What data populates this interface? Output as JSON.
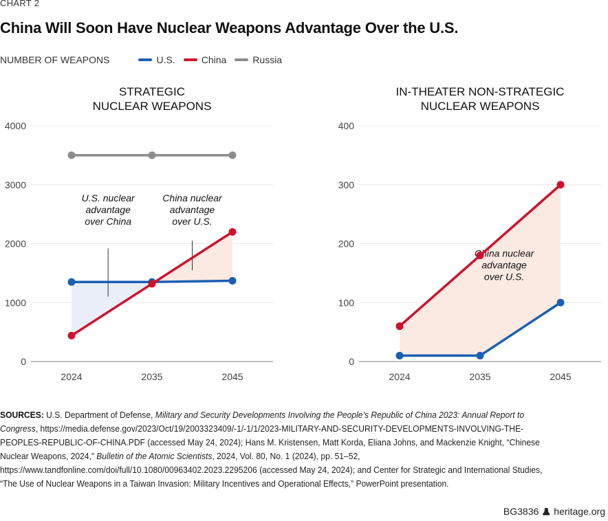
{
  "header": {
    "kicker": "CHART 2",
    "title": "China Will Soon Have Nuclear Weapons Advantage Over the U.S."
  },
  "legend": {
    "units_label": "NUMBER OF WEAPONS",
    "items": [
      {
        "label": "U.S.",
        "color": "#1a5fb4"
      },
      {
        "label": "China",
        "color": "#d0112b"
      },
      {
        "label": "Russia",
        "color": "#8c8c8c"
      }
    ]
  },
  "colors": {
    "us": "#1a5fb4",
    "china": "#d0112b",
    "russia": "#8c8c8c",
    "us_advantage_fill": "#e9eef8",
    "china_advantage_fill": "#fbeae2",
    "gridline": "#e8e8e8",
    "axis": "#999999"
  },
  "chart_data": [
    {
      "type": "line",
      "title": "STRATEGIC\nNUCLEAR WEAPONS",
      "title_lines": [
        "STRATEGIC",
        "NUCLEAR WEAPONS"
      ],
      "x": [
        "2024",
        "2035",
        "2045"
      ],
      "xlabel": "",
      "ylabel": "NUMBER OF WEAPONS",
      "ylim": [
        0,
        4000
      ],
      "yticks": [
        0,
        1000,
        2000,
        3000,
        4000
      ],
      "grid": true,
      "series": [
        {
          "name": "U.S.",
          "key": "us",
          "values": [
            1350,
            1350,
            1370
          ]
        },
        {
          "name": "China",
          "key": "china",
          "values": [
            440,
            1320,
            2200
          ]
        },
        {
          "name": "Russia",
          "key": "russia",
          "values": [
            3500,
            3500,
            3500
          ]
        }
      ],
      "shaded_regions": [
        {
          "between": [
            "us",
            "china"
          ],
          "from_index": 0,
          "to_index": 1,
          "fill": "us_advantage_fill"
        },
        {
          "between": [
            "china",
            "us"
          ],
          "from_index": 1,
          "to_index": 2,
          "fill": "china_advantage_fill"
        }
      ],
      "annotations": [
        {
          "lines": [
            "U.S. nuclear",
            "advantage",
            "over China"
          ],
          "x_year": 2029,
          "leader_from": 1920,
          "leader_to": 1100
        },
        {
          "lines": [
            "China nuclear",
            "advantage",
            "over U.S."
          ],
          "x_year": 2040,
          "leader_from": 2050,
          "leader_to": 1550
        }
      ]
    },
    {
      "type": "line",
      "title": "IN-THEATER NON-STRATEGIC\nNUCLEAR WEAPONS",
      "title_lines": [
        "IN-THEATER NON-STRATEGIC",
        "NUCLEAR WEAPONS"
      ],
      "x": [
        "2024",
        "2035",
        "2045"
      ],
      "xlabel": "",
      "ylabel": "NUMBER OF WEAPONS",
      "ylim": [
        0,
        400
      ],
      "yticks": [
        0,
        100,
        200,
        300,
        400
      ],
      "grid": true,
      "series": [
        {
          "name": "U.S.",
          "key": "us",
          "values": [
            10,
            10,
            100
          ]
        },
        {
          "name": "China",
          "key": "china",
          "values": [
            60,
            180,
            300
          ]
        }
      ],
      "shaded_regions": [
        {
          "between": [
            "china",
            "us"
          ],
          "from_index": 0,
          "to_index": 2,
          "fill": "china_advantage_fill"
        }
      ],
      "annotations": [
        {
          "lines": [
            "China nuclear",
            "advantage",
            "over U.S."
          ],
          "x_year": 2038,
          "y_value": 145
        }
      ]
    }
  ],
  "sources": {
    "label": "SOURCES:",
    "segments": [
      {
        "text": " U.S. Department of Defense, ",
        "italic": false
      },
      {
        "text": "Military and Security Developments Involving the People’s Republic of China 2023: Annual Report to Congress",
        "italic": true
      },
      {
        "text": ", https://media.defense.gov/2023/Oct/19/2003323409/-1/-1/1/2023-MILITARY-AND-SECURITY-DEVELOPMENTS-INVOLVING-THE-PEOPLES-REPUBLIC-OF-CHINA.PDF (accessed May 24, 2024); Hans M. Kristensen, Matt Korda, Eliana Johns, and Mackenzie Knight, “Chinese Nuclear Weapons, 2024,” ",
        "italic": false
      },
      {
        "text": "Bulletin of the Atomic Scientists",
        "italic": true
      },
      {
        "text": ", 2024, Vol. 80, No. 1 (2024), pp. 51–52, https://www.tandfonline.com/doi/full/10.1080/00963402.2023.2295206 (accessed May 24, 2024); and Center for Strategic and International Studies, “The Use of Nuclear Weapons in a Taiwan Invasion: Military Incentives and Operational Effects,” PowerPoint presentation.",
        "italic": false
      }
    ]
  },
  "footer": {
    "code": "BG3836",
    "logo_icon": "liberty-bell-icon",
    "site": "heritage.org"
  }
}
